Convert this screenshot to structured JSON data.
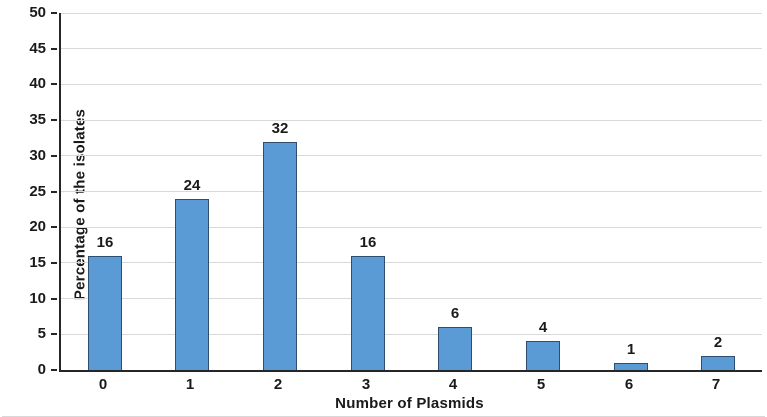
{
  "chart_data": {
    "type": "bar",
    "title": "",
    "xlabel": "Number of Plasmids",
    "ylabel": "Percentage of the isolates",
    "categories": [
      "0",
      "1",
      "2",
      "3",
      "4",
      "5",
      "6",
      "7"
    ],
    "values": [
      16,
      24,
      32,
      16,
      6,
      4,
      1,
      2
    ],
    "data_labels": [
      "16",
      "24",
      "32",
      "16",
      "6",
      "4",
      "1",
      "2"
    ],
    "ylim": [
      0,
      50
    ],
    "yticks": [
      0,
      5,
      10,
      15,
      20,
      25,
      30,
      35,
      40,
      45,
      50
    ],
    "grid": "horizontal",
    "legend": "none",
    "colors": {
      "bar_fill": "#5B9BD5",
      "bar_border": "#2E4D6F",
      "gridline": "#D9D9D9",
      "axis_line": "#262626",
      "text": "#1A1A1A"
    }
  }
}
